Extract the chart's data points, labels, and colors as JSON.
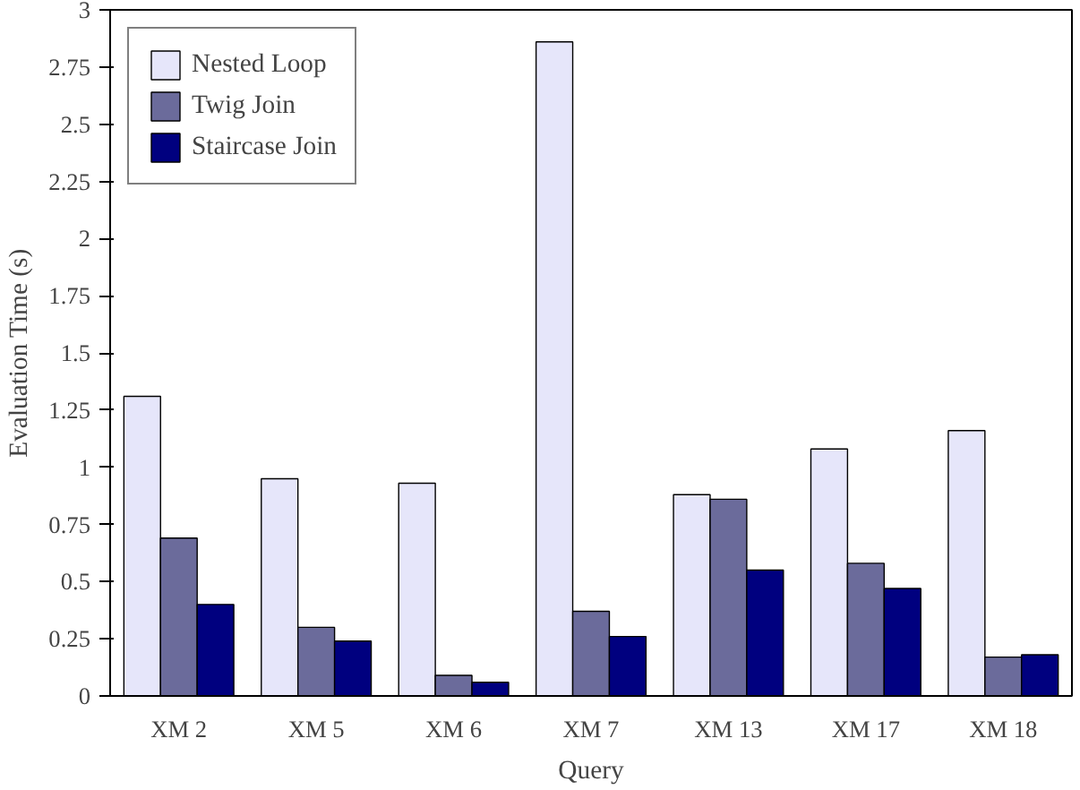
{
  "chart_data": {
    "type": "bar",
    "xlabel": "Query",
    "ylabel": "Evaluation Time (s)",
    "categories": [
      "XM 2",
      "XM 5",
      "XM 6",
      "XM 7",
      "XM 13",
      "XM 17",
      "XM 18"
    ],
    "series": [
      {
        "name": "Nested Loop",
        "color": "#e6e6fa",
        "values": [
          1.31,
          0.95,
          0.93,
          2.86,
          0.88,
          1.08,
          1.16
        ]
      },
      {
        "name": "Twig Join",
        "color": "#6b6b9b",
        "values": [
          0.69,
          0.3,
          0.09,
          0.37,
          0.86,
          0.58,
          0.17
        ]
      },
      {
        "name": "Staircase Join",
        "color": "#00007f",
        "values": [
          0.4,
          0.24,
          0.06,
          0.26,
          0.55,
          0.47,
          0.18
        ]
      }
    ],
    "ylim": [
      0,
      3
    ],
    "yticks": [
      0,
      0.25,
      0.5,
      0.75,
      1,
      1.25,
      1.5,
      1.75,
      2,
      2.25,
      2.5,
      2.75,
      3
    ],
    "grid": false,
    "legend": "top left"
  }
}
